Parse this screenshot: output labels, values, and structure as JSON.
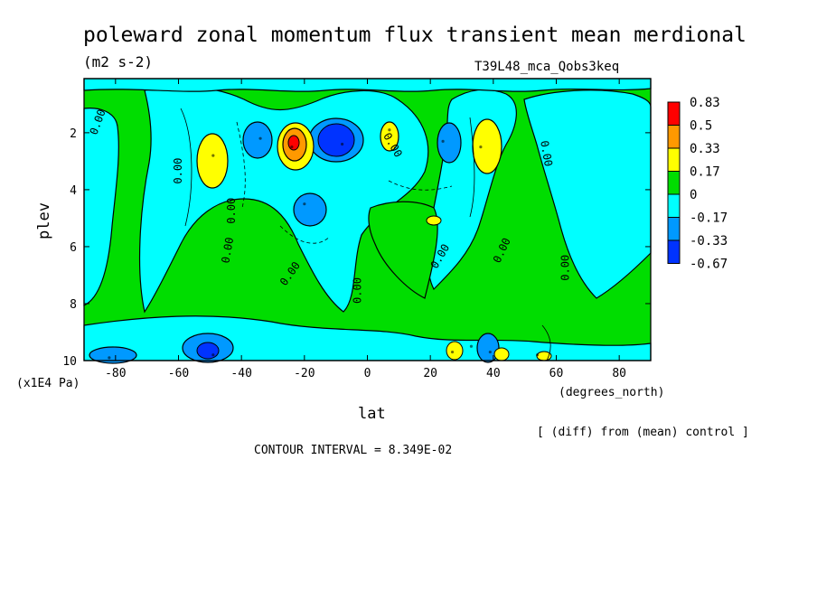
{
  "chart_data": {
    "type": "heatmap",
    "title": "poleward zonal momentum flux transient mean merdional",
    "units": "(m2 s-2)",
    "experiment": "T39L48_mca_Qobs3keq",
    "xlabel": "lat",
    "xunits": "(degrees_north)",
    "ylabel": "plev",
    "yunits": "(x1E4 Pa)",
    "footnote": "[ (diff) from (mean) control ]",
    "contour_interval_text": "CONTOUR INTERVAL = 8.349E-02",
    "contour_label": "0.00",
    "xlim": [
      -90,
      90
    ],
    "ylim": [
      0.1,
      10
    ],
    "y_inverted": true,
    "x_ticks": [
      -80,
      -60,
      -40,
      -20,
      0,
      20,
      40,
      60,
      80
    ],
    "y_ticks": [
      2,
      4,
      6,
      8,
      10
    ],
    "colorbar": {
      "levels": [
        "0.83",
        "0.5",
        "0.33",
        "0.17",
        "0",
        "-0.17",
        "-0.33",
        "-0.67"
      ],
      "colors": [
        "#ff0000",
        "#ff9900",
        "#ffff00",
        "#00dd00",
        "#00ffff",
        "#0099ff",
        "#0033ff"
      ]
    },
    "features": [
      {
        "lat": -24,
        "plev": 2.5,
        "value": 0.7
      },
      {
        "lat": -8,
        "plev": 2.4,
        "value": -0.45
      },
      {
        "lat": -34,
        "plev": 2.2,
        "value": -0.3
      },
      {
        "lat": -49,
        "plev": 2.8,
        "value": 0.25
      },
      {
        "lat": 36,
        "plev": 2.5,
        "value": 0.3
      },
      {
        "lat": 7,
        "plev": 1.9,
        "value": 0.2
      },
      {
        "lat": 24,
        "plev": 2.3,
        "value": -0.22
      },
      {
        "lat": -20,
        "plev": 4.5,
        "value": -0.25
      },
      {
        "lat": -49,
        "plev": 9.8,
        "value": -0.35
      },
      {
        "lat": -82,
        "plev": 9.9,
        "value": -0.25
      },
      {
        "lat": 27,
        "plev": 9.7,
        "value": 0.25
      },
      {
        "lat": 39,
        "plev": 9.7,
        "value": 0.22
      },
      {
        "lat": 54,
        "plev": 9.8,
        "value": 0.2
      },
      {
        "lat": 33,
        "plev": 9.5,
        "value": -0.2
      }
    ]
  }
}
